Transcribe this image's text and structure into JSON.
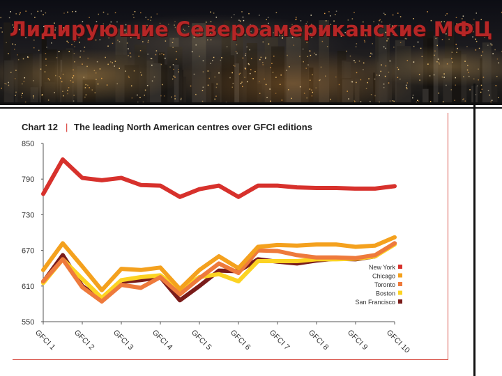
{
  "slide": {
    "title": "Лидирующие Североамериканские МФЦ"
  },
  "chart_data": {
    "type": "line",
    "chart_number": "Chart 12",
    "title": "The leading North American centres over GFCI editions",
    "xlabel": "",
    "ylabel": "",
    "ylim": [
      550,
      850
    ],
    "yticks": [
      850,
      790,
      730,
      670,
      610,
      550
    ],
    "categories": [
      "GFCI 1",
      "GFCI 2",
      "GFCI 3",
      "GFCI 4",
      "GFCI 5",
      "GFCI 6",
      "GFCI 7",
      "GFCI 8",
      "GFCI 9",
      "GFCI 10"
    ],
    "x": [
      1,
      1.5,
      2,
      2.5,
      3,
      3.5,
      4,
      4.5,
      5,
      5.5,
      6,
      6.5,
      7,
      7.5,
      8,
      8.5,
      9,
      9.5,
      10
    ],
    "legend_position": "right",
    "series": [
      {
        "name": "New York",
        "color": "#d7312c",
        "values": [
          765,
          823,
          792,
          788,
          792,
          780,
          779,
          760,
          773,
          779,
          760,
          779,
          779,
          776,
          775,
          775,
          774,
          774,
          778
        ]
      },
      {
        "name": "Chicago",
        "color": "#f4a11e",
        "values": [
          637,
          682,
          643,
          603,
          639,
          637,
          641,
          605,
          637,
          660,
          640,
          676,
          679,
          678,
          680,
          680,
          676,
          678,
          692
        ]
      },
      {
        "name": "Toronto",
        "color": "#ee7a3c",
        "values": [
          618,
          655,
          608,
          584,
          612,
          607,
          625,
          596,
          623,
          648,
          632,
          670,
          669,
          662,
          658,
          658,
          657,
          662,
          682
        ]
      },
      {
        "name": "Boston",
        "color": "#fcd322",
        "values": [
          615,
          655,
          622,
          590,
          620,
          625,
          628,
          603,
          625,
          630,
          618,
          652,
          652,
          652,
          655,
          655,
          656,
          660,
          680
        ]
      },
      {
        "name": "San Francisco",
        "color": "#7a1c1a",
        "values": [
          617,
          662,
          610,
          587,
          617,
          620,
          625,
          586,
          610,
          636,
          635,
          655,
          651,
          648,
          653,
          656,
          655,
          660,
          682
        ]
      }
    ]
  }
}
